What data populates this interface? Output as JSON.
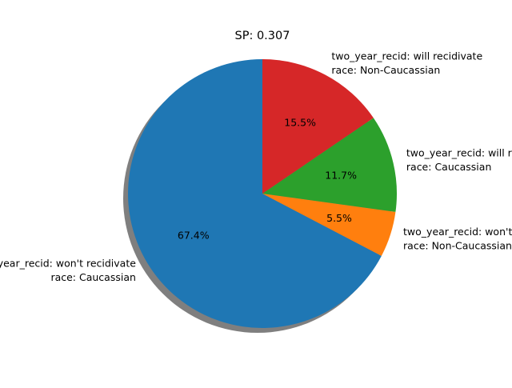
{
  "chart_data": {
    "type": "pie",
    "title": "SP: 0.307",
    "shadow": true,
    "start_angle_deg": 90,
    "direction": "counterclockwise",
    "slices": [
      {
        "label_lines": [
          "two_year_recid: won't recidivate",
          "race: Caucassian"
        ],
        "value": 67.4,
        "pct_label": "67.4%",
        "color": "#1f77b4"
      },
      {
        "label_lines": [
          "two_year_recid: won't recidivate",
          "race: Non-Caucassian"
        ],
        "value": 5.5,
        "pct_label": "5.5%",
        "color": "#ff7f0e"
      },
      {
        "label_lines": [
          "two_year_recid: will recidivate",
          "race: Caucassian"
        ],
        "value": 11.7,
        "pct_label": "11.7%",
        "color": "#2ca02c"
      },
      {
        "label_lines": [
          "two_year_recid: will recidivate",
          "race: Non-Caucassian"
        ],
        "value": 15.5,
        "pct_label": "15.5%",
        "color": "#d62728"
      }
    ]
  }
}
